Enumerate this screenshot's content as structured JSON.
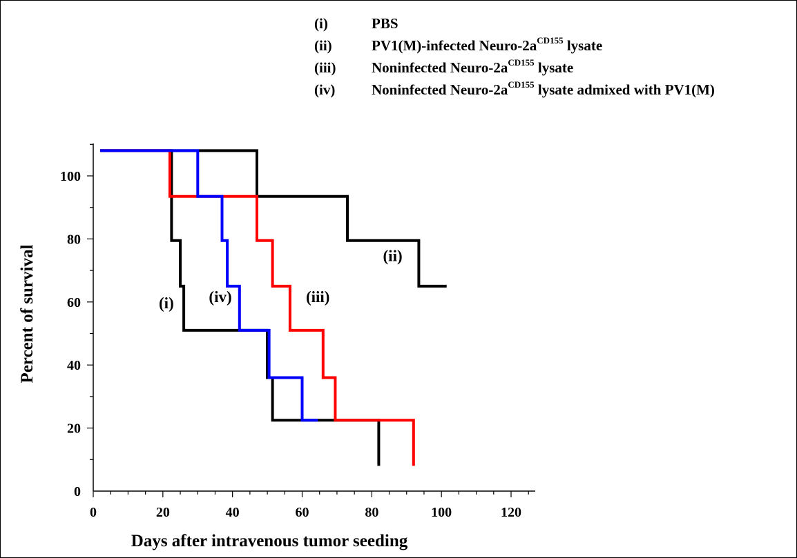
{
  "legend": [
    {
      "id": "(i)",
      "text": "PBS"
    },
    {
      "id": "(ii)",
      "text": "PV1(M)-infected Neuro-2a",
      "sup": "CD155",
      "after": " lysate"
    },
    {
      "id": "(iii)",
      "text": "Noninfected Neuro-2a",
      "sup": "CD155",
      "after": " lysate"
    },
    {
      "id": "(iv)",
      "text": "Noninfected Neuro-2a",
      "sup": "CD155",
      "after": " lysate admixed with PV1(M)"
    }
  ],
  "chart_data": {
    "type": "line",
    "step": true,
    "title": "",
    "xlabel": "Days after intravenous tumor seeding",
    "ylabel": "Percent of survival",
    "xlim": [
      0,
      120
    ],
    "ylim": [
      0,
      100
    ],
    "x_ticks": [
      0,
      20,
      40,
      60,
      80,
      100,
      120
    ],
    "y_ticks": [
      0,
      20,
      40,
      60,
      80,
      100
    ],
    "colors": {
      "black": "#000000",
      "red": "#ff0000",
      "blue": "#0000ff"
    },
    "series": [
      {
        "name": "(i)",
        "color": "#000000",
        "points": [
          [
            2,
            108
          ],
          [
            22.5,
            108
          ],
          [
            22.5,
            79.5
          ],
          [
            25,
            79.5
          ],
          [
            25,
            65
          ],
          [
            26,
            65
          ],
          [
            26,
            51
          ],
          [
            50,
            51
          ],
          [
            50,
            36
          ],
          [
            51.5,
            36
          ],
          [
            51.5,
            22.5
          ],
          [
            82,
            22.5
          ],
          [
            82,
            8
          ]
        ]
      },
      {
        "name": "(ii)",
        "color": "#000000",
        "points": [
          [
            2,
            108
          ],
          [
            47,
            108
          ],
          [
            47,
            93.5
          ],
          [
            73,
            93.5
          ],
          [
            73,
            79.5
          ],
          [
            93.5,
            79.5
          ],
          [
            93.5,
            65
          ],
          [
            101.5,
            65
          ]
        ]
      },
      {
        "name": "(iii)",
        "color": "#ff0000",
        "points": [
          [
            2,
            108
          ],
          [
            22,
            108
          ],
          [
            22,
            93.5
          ],
          [
            47,
            93.5
          ],
          [
            47,
            79.5
          ],
          [
            51.5,
            79.5
          ],
          [
            51.5,
            65
          ],
          [
            56.5,
            65
          ],
          [
            56.5,
            51
          ],
          [
            66,
            51
          ],
          [
            66,
            36
          ],
          [
            69.5,
            36
          ],
          [
            69.5,
            22.5
          ],
          [
            92,
            22.5
          ],
          [
            92,
            8
          ]
        ]
      },
      {
        "name": "(iv)",
        "color": "#0000ff",
        "points": [
          [
            2,
            108
          ],
          [
            30,
            108
          ],
          [
            30,
            93.5
          ],
          [
            37,
            93.5
          ],
          [
            37,
            79.5
          ],
          [
            38.5,
            79.5
          ],
          [
            38.5,
            65
          ],
          [
            42,
            65
          ],
          [
            42,
            51
          ],
          [
            50.5,
            51
          ],
          [
            50.5,
            36
          ],
          [
            60,
            36
          ],
          [
            60,
            22.5
          ],
          [
            64.5,
            22.5
          ]
        ]
      }
    ],
    "annotations": [
      {
        "text": "(i)",
        "x": 21,
        "y": 58
      },
      {
        "text": "(ii)",
        "x": 86,
        "y": 73
      },
      {
        "text": "(iii)",
        "x": 64.5,
        "y": 60
      },
      {
        "text": "(iv)",
        "x": 36.5,
        "y": 60
      }
    ]
  }
}
